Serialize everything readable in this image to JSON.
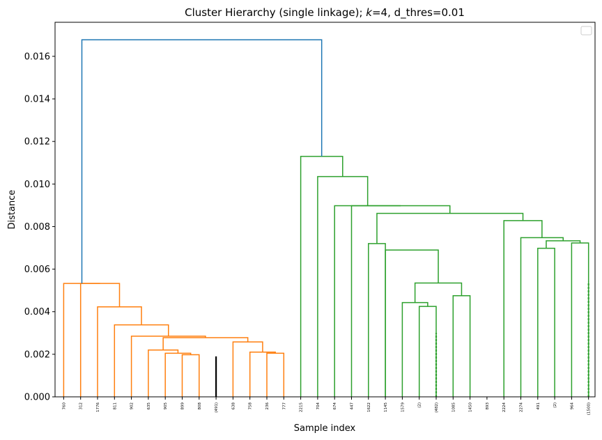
{
  "chart_data": {
    "type": "dendrogram",
    "title": "Cluster Hierarchy (single linkage); k=4, d_thres=0.01",
    "title_parts": {
      "prefix": "Cluster Hierarchy (single linkage); ",
      "k_symbol": "k",
      "suffix": "=4, d_thres=0.01"
    },
    "xlabel": "Sample index",
    "ylabel": "Distance",
    "ylim": [
      0,
      0.0176
    ],
    "yticks": [
      "0.000",
      "0.002",
      "0.004",
      "0.006",
      "0.008",
      "0.010",
      "0.012",
      "0.014",
      "0.016"
    ],
    "ytick_values": [
      0,
      0.002,
      0.004,
      0.006,
      0.008,
      0.01,
      0.012,
      0.014,
      0.016
    ],
    "leaves": [
      "760",
      "312",
      "1776",
      "811",
      "902",
      "635",
      "905",
      "899",
      "808",
      "(491)",
      "638",
      "758",
      "236",
      "777",
      "2215",
      "704",
      "674",
      "447",
      "1622",
      "1145",
      "1579",
      "(2)",
      "(482)",
      "1085",
      "1450",
      "893",
      "2224",
      "2274",
      "491",
      "(2)",
      "964",
      "(1500)"
    ],
    "colors": {
      "cluster_a": "#ff7f0e",
      "cluster_b": "#2ca02c",
      "link": "#1f77b4"
    },
    "legend": "top-right (empty)",
    "links": [
      {
        "l": 7,
        "r": 8,
        "h": 0.00198,
        "c": "cluster_a"
      },
      {
        "l": 6,
        "r": 7.5,
        "h": 0.00205,
        "c": "cluster_a"
      },
      {
        "l": 5,
        "r": 6.75,
        "h": 0.0022,
        "c": "cluster_a"
      },
      {
        "l": 12,
        "r": 13,
        "h": 0.00205,
        "c": "cluster_a"
      },
      {
        "l": 11,
        "r": 12.5,
        "h": 0.0021,
        "c": "cluster_a"
      },
      {
        "l": 10,
        "r": 11.75,
        "h": 0.00258,
        "c": "cluster_a"
      },
      {
        "l": 5.875,
        "r": 10.875,
        "h": 0.00278,
        "c": "cluster_a"
      },
      {
        "l": 4,
        "r": 8.375,
        "h": 0.00285,
        "c": "cluster_a"
      },
      {
        "l": 3,
        "r": 6.1875,
        "h": 0.00338,
        "c": "cluster_a"
      },
      {
        "l": 2,
        "r": 4.59375,
        "h": 0.00423,
        "c": "cluster_a"
      },
      {
        "l": 1,
        "r": 3.296875,
        "h": 0.00533,
        "c": "cluster_a"
      },
      {
        "l": 21,
        "r": 22,
        "h": 0.00425,
        "c": "cluster_b"
      },
      {
        "l": 20,
        "r": 21.5,
        "h": 0.00443,
        "c": "cluster_b"
      },
      {
        "l": 23,
        "r": 24,
        "h": 0.00475,
        "c": "cluster_b"
      },
      {
        "l": 20.75,
        "r": 23.5,
        "h": 0.00535,
        "c": "cluster_b"
      },
      {
        "l": 19,
        "r": 22.125,
        "h": 0.0069,
        "c": "cluster_b"
      },
      {
        "l": 18,
        "r": 19,
        "h": 0.0072,
        "c": "cluster_b"
      },
      {
        "l": 28,
        "r": 29,
        "h": 0.00698,
        "c": "cluster_b"
      },
      {
        "l": 30,
        "r": 31,
        "h": 0.00723,
        "c": "cluster_b"
      },
      {
        "l": 28.5,
        "r": 30.5,
        "h": 0.00733,
        "c": "cluster_b"
      },
      {
        "l": 27,
        "r": 29.5,
        "h": 0.00748,
        "c": "cluster_b"
      },
      {
        "l": 26,
        "r": 28.25,
        "h": 0.00828,
        "c": "cluster_b"
      },
      {
        "l": 18.5,
        "r": 27.125,
        "h": 0.00862,
        "c": "cluster_b"
      },
      {
        "l": 17,
        "r": 22.8125,
        "h": 0.00898,
        "c": "cluster_b"
      },
      {
        "l": 16,
        "r": 19.90625,
        "h": 0.00898,
        "c": "cluster_b"
      },
      {
        "l": 15,
        "r": 17.953125,
        "h": 0.01035,
        "c": "cluster_b"
      },
      {
        "l": 14,
        "r": 16.4765625,
        "h": 0.0113,
        "c": "cluster_b"
      },
      {
        "l": 0,
        "r": 2.1484375,
        "h": 0.00533,
        "c": "cluster_a"
      },
      {
        "l": 1.07421875,
        "r": 15.23828125,
        "h": 0.01678,
        "c": "link"
      }
    ],
    "dense_leaves": [
      9,
      22,
      31
    ]
  }
}
